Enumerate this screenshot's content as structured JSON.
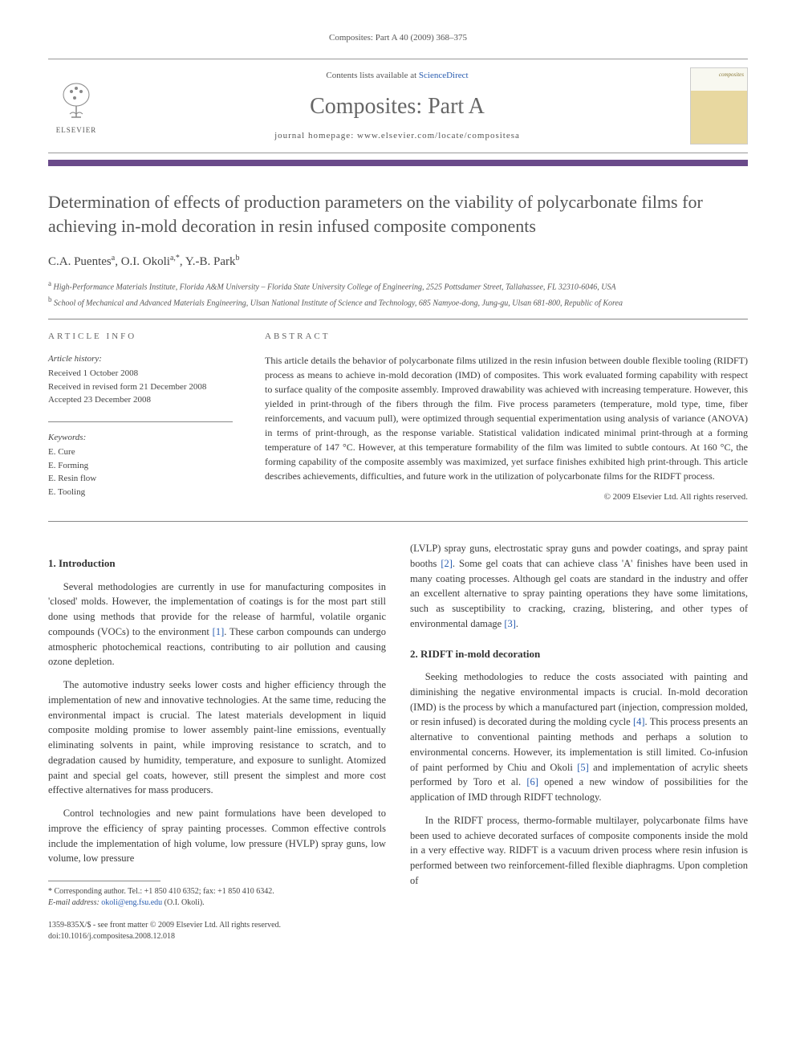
{
  "journal_ref": "Composites: Part A 40 (2009) 368–375",
  "header": {
    "contents_prefix": "Contents lists available at ",
    "contents_link": "ScienceDirect",
    "journal_title": "Composites: Part A",
    "homepage_label": "journal homepage: ",
    "homepage_url": "www.elsevier.com/locate/compositesa",
    "publisher": "ELSEVIER",
    "cover_label": "composites"
  },
  "article": {
    "title": "Determination of effects of production parameters on the viability of polycarbonate films for achieving in-mold decoration in resin infused composite components",
    "authors_html": "C.A. Puentes<sup>a</sup>, O.I. Okoli<sup>a,*</sup>, Y.-B. Park<sup>b</sup>",
    "affiliations": [
      "High-Performance Materials Institute, Florida A&M University – Florida State University College of Engineering, 2525 Pottsdamer Street, Tallahassee, FL 32310-6046, USA",
      "School of Mechanical and Advanced Materials Engineering, Ulsan National Institute of Science and Technology, 685 Namyoe-dong, Jung-gu, Ulsan 681-800, Republic of Korea"
    ],
    "aff_markers": [
      "a",
      "b"
    ]
  },
  "info": {
    "heading": "ARTICLE INFO",
    "history_head": "Article history:",
    "history": [
      "Received 1 October 2008",
      "Received in revised form 21 December 2008",
      "Accepted 23 December 2008"
    ],
    "keywords_head": "Keywords:",
    "keywords": [
      "E. Cure",
      "E. Forming",
      "E. Resin flow",
      "E. Tooling"
    ]
  },
  "abstract": {
    "heading": "ABSTRACT",
    "text": "This article details the behavior of polycarbonate films utilized in the resin infusion between double flexible tooling (RIDFT) process as means to achieve in-mold decoration (IMD) of composites. This work evaluated forming capability with respect to surface quality of the composite assembly. Improved drawability was achieved with increasing temperature. However, this yielded in print-through of the fibers through the film. Five process parameters (temperature, mold type, time, fiber reinforcements, and vacuum pull), were optimized through sequential experimentation using analysis of variance (ANOVA) in terms of print-through, as the response variable. Statistical validation indicated minimal print-through at a forming temperature of 147 °C. However, at this temperature formability of the film was limited to subtle contours. At 160 °C, the forming capability of the composite assembly was maximized, yet surface finishes exhibited high print-through. This article describes achievements, difficulties, and future work in the utilization of polycarbonate films for the RIDFT process.",
    "copyright": "© 2009 Elsevier Ltd. All rights reserved."
  },
  "sections": {
    "s1_head": "1. Introduction",
    "s1_p1": "Several methodologies are currently in use for manufacturing composites in 'closed' molds. However, the implementation of coatings is for the most part still done using methods that provide for the release of harmful, volatile organic compounds (VOCs) to the environment [1]. These carbon compounds can undergo atmospheric photochemical reactions, contributing to air pollution and causing ozone depletion.",
    "s1_p2": "The automotive industry seeks lower costs and higher efficiency through the implementation of new and innovative technologies. At the same time, reducing the environmental impact is crucial. The latest materials development in liquid composite molding promise to lower assembly paint-line emissions, eventually eliminating solvents in paint, while improving resistance to scratch, and to degradation caused by humidity, temperature, and exposure to sunlight. Atomized paint and special gel coats, however, still present the simplest and more cost effective alternatives for mass producers.",
    "s1_p3": "Control technologies and new paint formulations have been developed to improve the efficiency of spray painting processes. Common effective controls include the implementation of high volume, low pressure (HVLP) spray guns, low volume, low pressure",
    "s1_p4": "(LVLP) spray guns, electrostatic spray guns and powder coatings, and spray paint booths [2]. Some gel coats that can achieve class 'A' finishes have been used in many coating processes. Although gel coats are standard in the industry and offer an excellent alternative to spray painting operations they have some limitations, such as susceptibility to cracking, crazing, blistering, and other types of environmental damage [3].",
    "s2_head": "2. RIDFT in-mold decoration",
    "s2_p1": "Seeking methodologies to reduce the costs associated with painting and diminishing the negative environmental impacts is crucial. In-mold decoration (IMD) is the process by which a manufactured part (injection, compression molded, or resin infused) is decorated during the molding cycle [4]. This process presents an alternative to conventional painting methods and perhaps a solution to environmental concerns. However, its implementation is still limited. Co-infusion of paint performed by Chiu and Okoli [5] and implementation of acrylic sheets performed by Toro et al. [6] opened a new window of possibilities for the application of IMD through RIDFT technology.",
    "s2_p2": "In the RIDFT process, thermo-formable multilayer, polycarbonate films have been used to achieve decorated surfaces of composite components inside the mold in a very effective way. RIDFT is a vacuum driven process where resin infusion is performed between two reinforcement-filled flexible diaphragms. Upon completion of"
  },
  "footnote": {
    "star": "* Corresponding author. Tel.: +1 850 410 6352; fax: +1 850 410 6342.",
    "email_label": "E-mail address:",
    "email": "okoli@eng.fsu.edu",
    "email_who": "(O.I. Okoli)."
  },
  "bottom": {
    "line1": "1359-835X/$ - see front matter © 2009 Elsevier Ltd. All rights reserved.",
    "line2": "doi:10.1016/j.compositesa.2008.12.018"
  },
  "style": {
    "accent_bar": "#6a4a8a",
    "link_color": "#2a5db0",
    "text_color": "#3a3a3a"
  }
}
